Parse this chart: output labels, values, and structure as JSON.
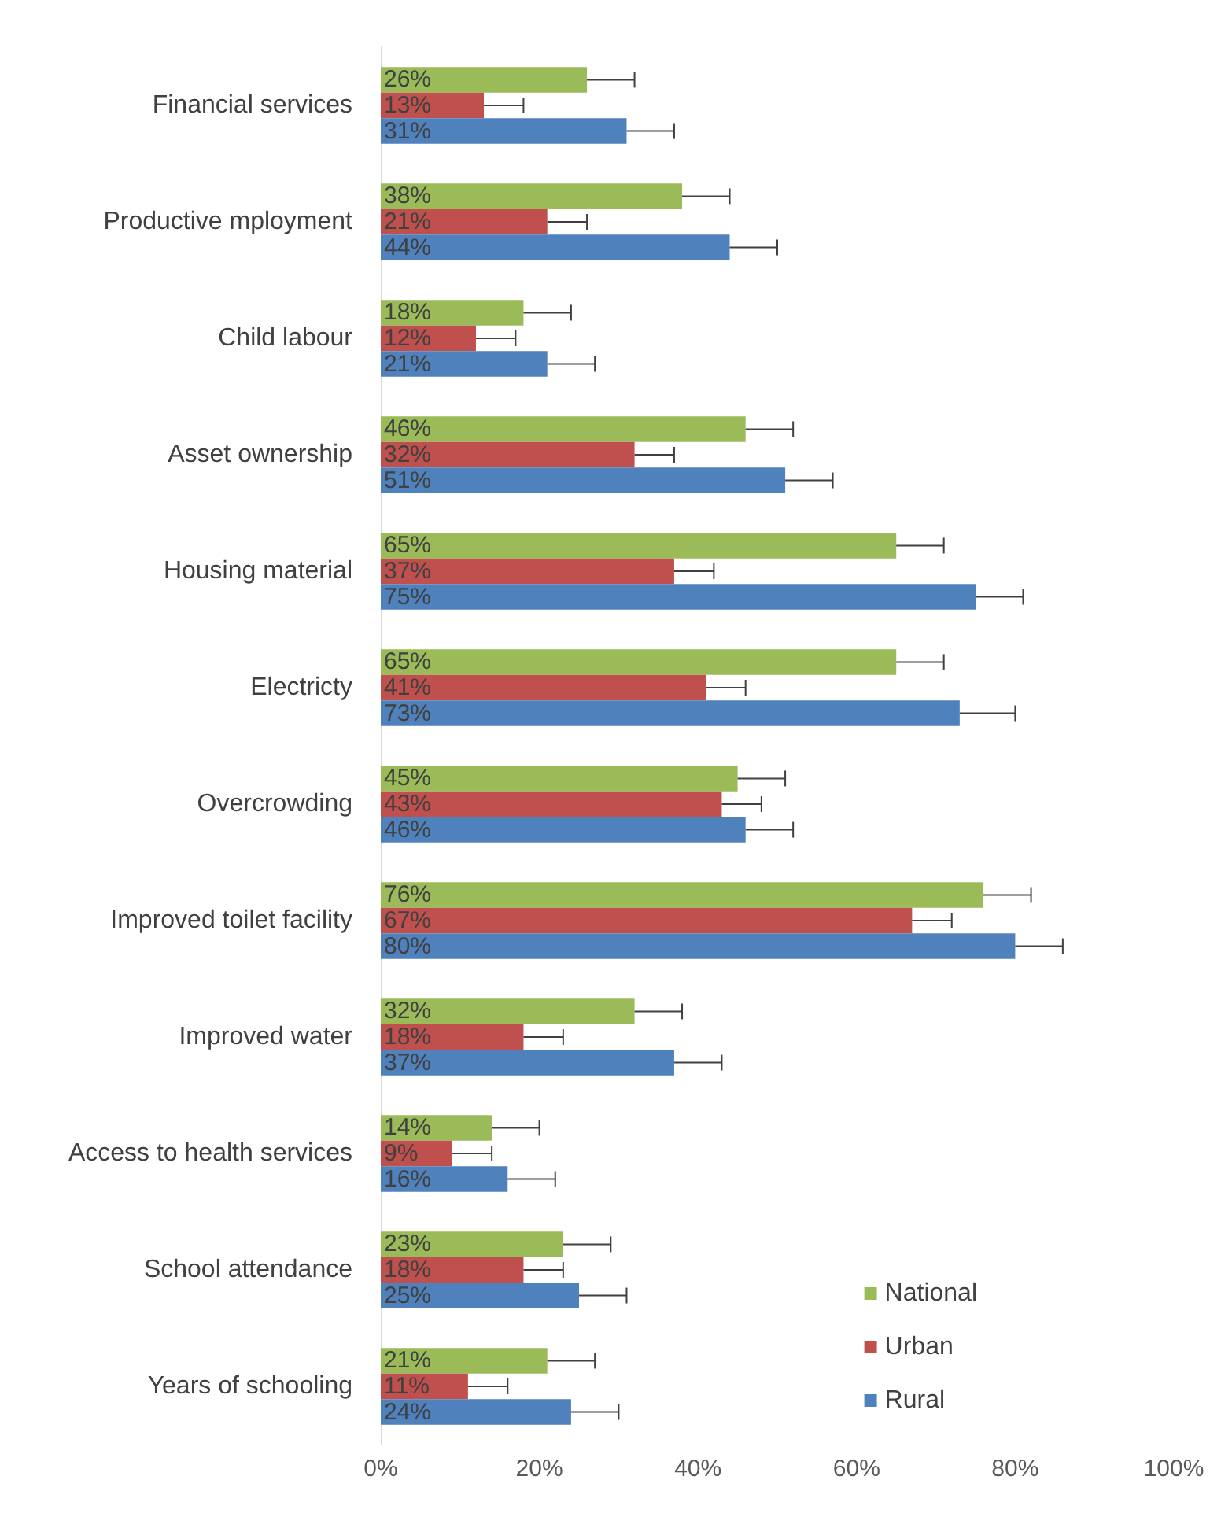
{
  "chart_data": {
    "type": "bar",
    "orientation": "horizontal",
    "categories": [
      "Financial services",
      "Productive mployment",
      "Child labour",
      "Asset ownership",
      "Housing material",
      "Electricty",
      "Overcrowding",
      "Improved toilet facility",
      "Improved water",
      "Access to health services",
      "School attendance",
      "Years of schooling"
    ],
    "series": [
      {
        "name": "National",
        "color": "#9bbb59",
        "values": [
          26,
          38,
          18,
          46,
          65,
          65,
          45,
          76,
          32,
          14,
          23,
          21
        ],
        "value_labels": [
          "26%",
          "38%",
          "18%",
          "46%",
          "65%",
          "65%",
          "45%",
          "76%",
          "32%",
          "14%",
          "23%",
          "21%"
        ],
        "errors": [
          [
            26,
            32
          ],
          [
            38,
            44
          ],
          [
            18,
            24
          ],
          [
            46,
            52
          ],
          [
            65,
            71
          ],
          [
            65,
            71
          ],
          [
            45,
            51
          ],
          [
            76,
            82
          ],
          [
            32,
            38
          ],
          [
            14,
            20
          ],
          [
            23,
            29
          ],
          [
            21,
            27
          ]
        ]
      },
      {
        "name": "Urban",
        "color": "#c0504d",
        "values": [
          13,
          21,
          12,
          32,
          37,
          41,
          43,
          67,
          18,
          9,
          18,
          11
        ],
        "value_labels": [
          "13%",
          "21%",
          "12%",
          "32%",
          "37%",
          "41%",
          "43%",
          "67%",
          "18%",
          "9%",
          "18%",
          "11%"
        ],
        "errors": [
          [
            13,
            18
          ],
          [
            21,
            26
          ],
          [
            12,
            17
          ],
          [
            32,
            37
          ],
          [
            37,
            42
          ],
          [
            41,
            46
          ],
          [
            43,
            48
          ],
          [
            67,
            72
          ],
          [
            18,
            23
          ],
          [
            9,
            14
          ],
          [
            18,
            23
          ],
          [
            11,
            16
          ]
        ]
      },
      {
        "name": "Rural",
        "color": "#4f81bd",
        "values": [
          31,
          44,
          21,
          51,
          75,
          73,
          46,
          80,
          37,
          16,
          25,
          24
        ],
        "value_labels": [
          "31%",
          "44%",
          "21%",
          "51%",
          "75%",
          "73%",
          "46%",
          "80%",
          "37%",
          "16%",
          "25%",
          "24%"
        ],
        "errors": [
          [
            31,
            37
          ],
          [
            44,
            50
          ],
          [
            21,
            27
          ],
          [
            51,
            57
          ],
          [
            75,
            81
          ],
          [
            73,
            80
          ],
          [
            46,
            52
          ],
          [
            80,
            86
          ],
          [
            37,
            43
          ],
          [
            16,
            22
          ],
          [
            25,
            31
          ],
          [
            24,
            30
          ]
        ]
      }
    ],
    "xlim": [
      0,
      100
    ],
    "xticks": [
      {
        "value": 0,
        "label": "0%"
      },
      {
        "value": 20,
        "label": "20%"
      },
      {
        "value": 40,
        "label": "40%"
      },
      {
        "value": 60,
        "label": "60%"
      },
      {
        "value": 80,
        "label": "80%"
      },
      {
        "value": 100,
        "label": "100%"
      }
    ],
    "legend": "bottom right",
    "grid": false
  }
}
